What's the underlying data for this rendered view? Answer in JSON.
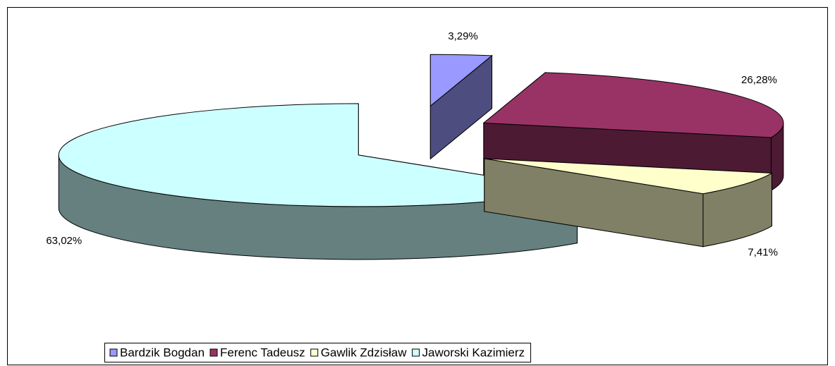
{
  "chart_data": {
    "type": "pie",
    "categories": [
      "Bardzik Bogdan",
      "Ferenc Tadeusz",
      "Gawlik Zdzisław",
      "Jaworski Kazimierz"
    ],
    "values": [
      3.29,
      26.28,
      7.41,
      63.02
    ],
    "value_labels": [
      "3,29%",
      "26,28%",
      "7,41%",
      "63,02%"
    ],
    "colors": [
      "#9999ff",
      "#993366",
      "#ffffcc",
      "#ccffff"
    ],
    "legend": "bottom"
  }
}
